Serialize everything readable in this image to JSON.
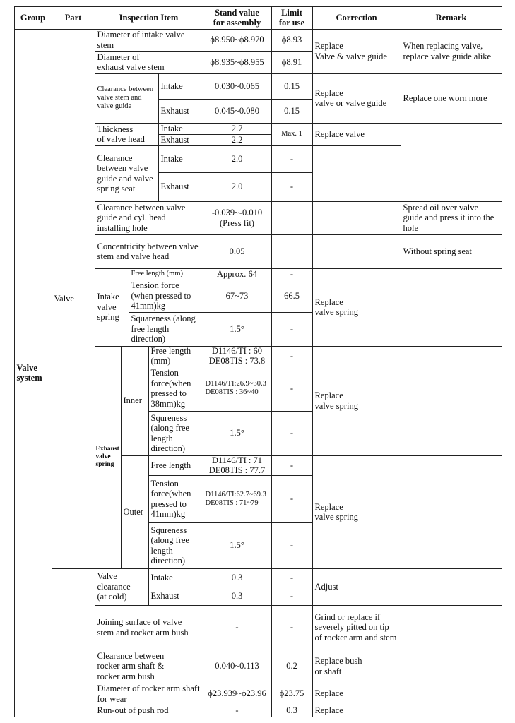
{
  "header": {
    "group": "Group",
    "part": "Part",
    "inspection_item": "Inspection Item",
    "stand_value": "Stand value\nfor assembly",
    "limit": "Limit\nfor use",
    "correction": "Correction",
    "remark": "Remark"
  },
  "group": "Valve\nsystem",
  "part": "Valve",
  "stem_diameter": {
    "intake": {
      "item": "Diameter of intake valve stem",
      "stand": "ϕ8.950~ϕ8.970",
      "limit": "ϕ8.93"
    },
    "exhaust": {
      "item": "Diameter of\nexhaust valve stem",
      "stand": "ϕ8.935~ϕ8.955",
      "limit": "ϕ8.91"
    },
    "correction": "Replace\nValve & valve guide",
    "remark": "When replacing valve, replace valve guide alike"
  },
  "stem_guide_clearance": {
    "item": "Clearance between valve stem and valve guide",
    "intake": {
      "label": "Intake",
      "stand": "0.030~0.065",
      "limit": "0.15"
    },
    "exhaust": {
      "label": "Exhaust",
      "stand": "0.045~0.080",
      "limit": "0.15"
    },
    "correction": "Replace\nvalve or valve guide",
    "remark": "Replace one worn more"
  },
  "head_thickness": {
    "item": "Thickness\nof valve head",
    "intake": {
      "label": "Intake",
      "stand": "2.7"
    },
    "exhaust": {
      "label": "Exhaust",
      "stand": "2.2"
    },
    "limit": "Max. 1",
    "correction": "Replace valve"
  },
  "guide_seat_clearance": {
    "item": "Clearance between valve guide and valve spring seat",
    "intake": {
      "label": "Intake",
      "stand": "2.0",
      "limit": "-"
    },
    "exhaust": {
      "label": "Exhaust",
      "stand": "2.0",
      "limit": "-"
    }
  },
  "guide_head_clearance": {
    "item": "Clearance between valve guide and cyl. head installing hole",
    "stand": "-0.039~-0.010\n(Press fit)",
    "remark": "Spread oil over valve guide and press it into the hole"
  },
  "concentricity": {
    "item": "Concentricity between valve stem and valve head",
    "stand": "0.05",
    "remark": "Without spring seat"
  },
  "intake_spring": {
    "label": "Intake valve spring",
    "free_length": {
      "item": "Free length (mm)",
      "stand": "Approx. 64",
      "limit": "-"
    },
    "tension": {
      "item": "Tension force (when pressed to 41mm)kg",
      "stand": "67~73",
      "limit": "66.5"
    },
    "squareness": {
      "item": "Squareness (along free length direction)",
      "stand": "1.5°",
      "limit": "-"
    },
    "correction": "Replace\nvalve spring"
  },
  "exhaust_spring": {
    "label": "Exhaust valve spring",
    "inner": {
      "label": "Inner",
      "free_length": {
        "item": "Free length (mm)",
        "stand": "D1146/TI : 60\nDE08TIS : 73.8",
        "limit": "-"
      },
      "tension": {
        "item": "Tension force(when pressed to 38mm)kg",
        "stand": "D1146/TI:26.9~30.3\nDE08TIS : 36~40",
        "limit": "-"
      },
      "squareness": {
        "item": "Squreness (along free length direction)",
        "stand": "1.5°",
        "limit": "-"
      },
      "correction": "Replace\nvalve spring"
    },
    "outer": {
      "label": "Outer",
      "free_length": {
        "item": "Free length",
        "stand": "D1146/TI : 71\nDE08TIS : 77.7",
        "limit": "-"
      },
      "tension": {
        "item": "Tension force(when pressed to 41mm)kg",
        "stand": "D1146/TI:62.7~69.3\nDE08TIS : 71~79",
        "limit": "-"
      },
      "squareness": {
        "item": "Squreness (along free length direction)",
        "stand": "1.5°",
        "limit": "-"
      },
      "correction": "Replace\nvalve spring"
    }
  },
  "valve_clearance": {
    "item": "Valve\nclearance\n(at cold)",
    "intake": {
      "label": "Intake",
      "stand": "0.3",
      "limit": "-"
    },
    "exhaust": {
      "label": "Exhaust",
      "stand": "0.3",
      "limit": "-"
    },
    "correction": "Adjust"
  },
  "joining_surface": {
    "item": "Joining surface of valve stem and rocker arm bush",
    "stand": "-",
    "limit": "-",
    "correction": "Grind or replace if severely pitted on tip of rocker arm and stem"
  },
  "rocker_clearance": {
    "item": "Clearance between\nrocker arm shaft &\nrocker arm bush",
    "stand": "0.040~0.113",
    "limit": "0.2",
    "correction": "Replace bush\nor shaft"
  },
  "rocker_diameter": {
    "item": "Diameter of rocker arm shaft for wear",
    "stand": "ϕ23.939~ϕ23.96",
    "limit": "ϕ23.75",
    "correction": "Replace"
  },
  "push_rod": {
    "item": "Run-out of push rod",
    "stand": "-",
    "limit": "0.3",
    "correction": "Replace"
  }
}
